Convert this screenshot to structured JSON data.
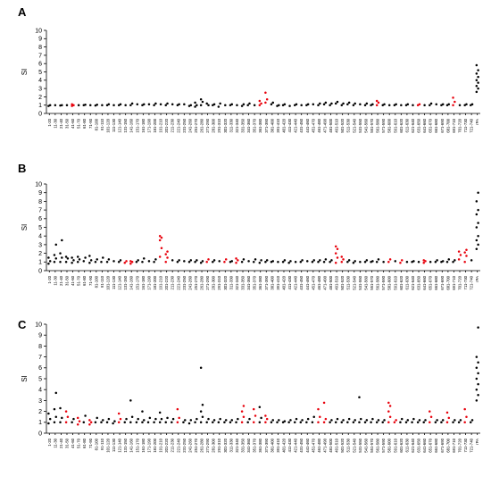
{
  "chart_data": {
    "type": "scatter",
    "panels": [
      "A",
      "B",
      "C"
    ],
    "ylabel": "SI",
    "ylim": [
      0,
      10
    ],
    "yticks": [
      0,
      1,
      2,
      3,
      4,
      5,
      6,
      7,
      8,
      9,
      10
    ],
    "categories": [
      "1-20",
      "11-30",
      "21-40",
      "31-50",
      "41-60",
      "51-70",
      "61-80",
      "71-90",
      "81-100",
      "91-110",
      "101-120",
      "111-130",
      "121-140",
      "131-150",
      "141-160",
      "151-170",
      "161-180",
      "171-190",
      "181-200",
      "191-210",
      "201-220",
      "211-230",
      "221-240",
      "231-250",
      "241-260",
      "251-270",
      "261-280",
      "271-290",
      "281-300",
      "291-310",
      "301-320",
      "311-330",
      "321-340",
      "331-350",
      "341-360",
      "351-370",
      "361-380",
      "371-390",
      "381-400",
      "391-410",
      "401-420",
      "411-430",
      "421-440",
      "431-450",
      "441-460",
      "451-470",
      "461-480",
      "471-490",
      "481-500",
      "491-510",
      "501-520",
      "511-530",
      "521-540",
      "531-550",
      "541-560",
      "551-570",
      "561-580",
      "571-590",
      "581-600",
      "591-610",
      "601-620",
      "611-630",
      "621-640",
      "631-650",
      "641-660",
      "651-670",
      "661-680",
      "671-690",
      "681-700",
      "691-710",
      "701-720",
      "711-730",
      "721-740",
      "rPA"
    ],
    "colors": {
      "normal": "#000000",
      "highlight": "#e8000b"
    },
    "series": [
      {
        "panel": "A",
        "highlight_categories": [
          "41-60",
          "361-380",
          "371-390",
          "561-580",
          "631-650",
          "691-710"
        ],
        "values": {
          "1-20": [
            0.9,
            1.0
          ],
          "11-30": [
            1.0
          ],
          "21-40": [
            0.95,
            1.0
          ],
          "31-50": [
            1.0
          ],
          "41-60": [
            0.9,
            1.0,
            1.1
          ],
          "51-70": [
            1.0
          ],
          "61-80": [
            1.0,
            1.05
          ],
          "71-90": [
            1.0
          ],
          "81-100": [
            0.95,
            1.05
          ],
          "91-110": [
            1.0
          ],
          "101-120": [
            1.0,
            1.1
          ],
          "111-130": [
            1.0
          ],
          "121-140": [
            1.0,
            1.1
          ],
          "131-150": [
            1.0
          ],
          "141-160": [
            1.0,
            1.2
          ],
          "151-170": [
            1.1
          ],
          "161-180": [
            1.0,
            1.1
          ],
          "171-190": [
            1.1
          ],
          "181-200": [
            1.0,
            1.2
          ],
          "191-210": [
            1.1
          ],
          "201-220": [
            1.0,
            1.2
          ],
          "211-230": [
            1.1
          ],
          "221-240": [
            1.0,
            1.1
          ],
          "231-250": [
            1.1
          ],
          "241-260": [
            0.9,
            1.0
          ],
          "251-270": [
            0.8,
            1.0,
            1.3
          ],
          "261-280": [
            1.0,
            1.4,
            1.7
          ],
          "271-290": [
            1.2,
            1.0
          ],
          "281-300": [
            1.0,
            1.1
          ],
          "291-310": [
            0.8,
            1.2
          ],
          "301-320": [
            1.0
          ],
          "311-330": [
            1.0,
            1.1
          ],
          "321-340": [
            1.0
          ],
          "331-350": [
            0.9,
            1.1
          ],
          "341-360": [
            1.0,
            1.2
          ],
          "351-370": [
            1.0
          ],
          "361-380": [
            1.0,
            1.2,
            1.5
          ],
          "371-390": [
            1.3,
            1.7,
            2.5
          ],
          "381-400": [
            1.1,
            1.3
          ],
          "391-410": [
            0.9,
            1.0
          ],
          "401-420": [
            1.0,
            1.1
          ],
          "411-430": [
            0.9
          ],
          "421-440": [
            1.0,
            1.1
          ],
          "431-450": [
            1.0
          ],
          "441-460": [
            1.0,
            1.1
          ],
          "451-470": [
            1.1
          ],
          "461-480": [
            1.0,
            1.2
          ],
          "471-490": [
            1.1,
            1.3
          ],
          "481-500": [
            1.0,
            1.2
          ],
          "491-510": [
            1.2,
            1.4
          ],
          "501-520": [
            1.0,
            1.2
          ],
          "511-530": [
            1.1,
            1.3
          ],
          "521-540": [
            1.0,
            1.2
          ],
          "531-550": [
            1.1
          ],
          "541-560": [
            1.0,
            1.2
          ],
          "551-570": [
            1.0,
            1.1
          ],
          "561-580": [
            1.0,
            1.3,
            1.5
          ],
          "571-590": [
            1.0,
            1.1
          ],
          "581-600": [
            1.0
          ],
          "591-610": [
            1.0,
            1.1
          ],
          "601-620": [
            1.0
          ],
          "611-630": [
            1.0,
            1.1
          ],
          "621-640": [
            1.0
          ],
          "631-650": [
            1.0,
            1.1
          ],
          "641-660": [
            1.0
          ],
          "651-670": [
            1.0,
            1.2
          ],
          "661-680": [
            1.1
          ],
          "671-690": [
            1.0,
            1.1
          ],
          "681-700": [
            1.0,
            1.1
          ],
          "691-710": [
            1.0,
            1.4,
            1.9
          ],
          "701-720": [
            1.0
          ],
          "711-730": [
            1.0,
            1.1
          ],
          "721-740": [
            1.0,
            1.1
          ],
          "rPA": [
            2.6,
            3.0,
            3.3,
            3.7,
            4.0,
            4.4,
            4.8,
            5.2,
            5.8
          ]
        }
      },
      {
        "panel": "B",
        "highlight_categories": [
          "131-150",
          "141-160",
          "191-210",
          "201-220",
          "271-290",
          "301-320",
          "321-340",
          "491-510",
          "501-520",
          "581-600",
          "601-620",
          "641-660",
          "701-720",
          "711-730"
        ],
        "values": {
          "1-20": [
            0.8,
            1.1,
            1.5
          ],
          "11-30": [
            1.0,
            1.4,
            1.8,
            3.0
          ],
          "21-40": [
            1.0,
            1.5,
            2.0,
            3.5
          ],
          "31-50": [
            1.0,
            1.4,
            1.6
          ],
          "41-60": [
            0.9,
            1.2,
            1.5
          ],
          "51-70": [
            1.0,
            1.3,
            1.6
          ],
          "61-80": [
            1.1,
            1.5
          ],
          "71-90": [
            0.9,
            1.2,
            1.7
          ],
          "81-100": [
            1.0,
            1.3
          ],
          "91-110": [
            1.0,
            1.5
          ],
          "101-120": [
            1.0,
            1.3
          ],
          "111-130": [
            1.1
          ],
          "121-140": [
            1.0,
            1.2
          ],
          "131-150": [
            0.9,
            1.1
          ],
          "141-160": [
            0.8,
            1.0,
            1.1
          ],
          "151-170": [
            1.0,
            1.2
          ],
          "161-180": [
            1.0,
            1.4
          ],
          "171-190": [
            1.1
          ],
          "181-200": [
            1.0,
            1.3
          ],
          "191-210": [
            1.6,
            2.6,
            3.5,
            3.8,
            4.0
          ],
          "201-220": [
            1.0,
            1.5,
            1.9,
            2.2
          ],
          "211-230": [
            1.2
          ],
          "221-240": [
            1.0,
            1.2
          ],
          "231-250": [
            1.1
          ],
          "241-260": [
            1.0,
            1.2
          ],
          "251-270": [
            1.0,
            1.2
          ],
          "261-280": [
            0.9,
            1.1
          ],
          "271-290": [
            1.0,
            1.3
          ],
          "281-300": [
            1.0,
            1.2
          ],
          "291-310": [
            1.1
          ],
          "301-320": [
            1.0,
            1.3
          ],
          "311-330": [
            1.0,
            1.1
          ],
          "321-340": [
            0.9,
            1.2,
            1.4
          ],
          "331-350": [
            1.0,
            1.3
          ],
          "341-360": [
            1.1
          ],
          "351-370": [
            1.0,
            1.3
          ],
          "361-380": [
            0.9,
            1.2
          ],
          "371-390": [
            1.0,
            1.2
          ],
          "381-400": [
            1.0,
            1.1
          ],
          "391-410": [
            1.0
          ],
          "401-420": [
            1.0,
            1.2
          ],
          "411-430": [
            0.9,
            1.1
          ],
          "421-440": [
            1.0
          ],
          "431-450": [
            1.0,
            1.2
          ],
          "441-460": [
            1.1
          ],
          "451-470": [
            1.0,
            1.2
          ],
          "461-480": [
            1.0,
            1.2
          ],
          "471-490": [
            1.0,
            1.3
          ],
          "481-500": [
            1.0,
            1.2
          ],
          "491-510": [
            0.9,
            1.5,
            2.0,
            2.5,
            2.8
          ],
          "501-520": [
            1.0,
            1.3,
            1.6
          ],
          "511-530": [
            1.0,
            1.2
          ],
          "521-540": [
            0.9,
            1.1
          ],
          "531-550": [
            1.0
          ],
          "541-560": [
            1.0,
            1.2
          ],
          "551-570": [
            1.0,
            1.1
          ],
          "561-580": [
            1.0,
            1.3
          ],
          "571-590": [
            1.0
          ],
          "581-600": [
            1.0,
            1.3
          ],
          "591-610": [
            1.1
          ],
          "601-620": [
            0.9,
            1.2
          ],
          "611-630": [
            1.0
          ],
          "621-640": [
            1.0,
            1.1
          ],
          "631-650": [
            1.0
          ],
          "641-660": [
            0.9,
            1.1,
            1.2
          ],
          "651-670": [
            1.0
          ],
          "661-680": [
            1.0,
            1.2
          ],
          "671-690": [
            1.0,
            1.1
          ],
          "681-700": [
            1.0,
            1.3
          ],
          "691-710": [
            1.0,
            1.2
          ],
          "701-720": [
            1.3,
            1.8,
            2.2
          ],
          "711-730": [
            1.0,
            1.7,
            2.1,
            2.4
          ],
          "721-740": [
            1.2
          ],
          "rPA": [
            2.5,
            3.0,
            3.5,
            4.0,
            5.0,
            5.5,
            6.5,
            7.0,
            8.0,
            9.0
          ]
        }
      },
      {
        "panel": "C",
        "highlight_categories": [
          "31-50",
          "51-70",
          "71-90",
          "121-140",
          "221-240",
          "331-350",
          "351-370",
          "371-390",
          "461-480",
          "471-490",
          "581-600",
          "591-610",
          "651-670",
          "681-700",
          "711-730"
        ],
        "values": {
          "1-20": [
            0.9,
            1.3,
            1.8
          ],
          "11-30": [
            1.0,
            1.5,
            2.2,
            3.7
          ],
          "21-40": [
            1.0,
            1.4,
            2.3
          ],
          "31-50": [
            1.0,
            1.5,
            2.0
          ],
          "41-60": [
            1.0,
            1.3
          ],
          "51-70": [
            0.8,
            1.1,
            1.4
          ],
          "61-80": [
            1.0,
            1.6
          ],
          "71-90": [
            0.8,
            1.0,
            1.2
          ],
          "81-100": [
            1.0,
            1.4
          ],
          "91-110": [
            1.0,
            1.2
          ],
          "101-120": [
            1.0,
            1.3
          ],
          "111-130": [
            0.9,
            1.1
          ],
          "121-140": [
            1.0,
            1.3,
            1.8
          ],
          "131-150": [
            1.0,
            1.3
          ],
          "141-160": [
            1.0,
            1.5,
            3.0
          ],
          "151-170": [
            1.0,
            1.3
          ],
          "161-180": [
            1.0,
            1.2,
            2.0
          ],
          "171-190": [
            1.0,
            1.4
          ],
          "181-200": [
            1.0,
            1.3
          ],
          "191-210": [
            1.0,
            1.3,
            1.9
          ],
          "201-220": [
            1.0,
            1.4
          ],
          "211-230": [
            1.0,
            1.3
          ],
          "221-240": [
            1.0,
            1.4,
            2.2
          ],
          "231-250": [
            1.0,
            1.2
          ],
          "241-260": [
            0.9,
            1.2
          ],
          "251-270": [
            1.0,
            1.3
          ],
          "261-280": [
            1.0,
            1.5,
            2.0,
            2.6,
            6.0
          ],
          "271-290": [
            1.0,
            1.3
          ],
          "281-300": [
            1.0,
            1.2
          ],
          "291-310": [
            1.0,
            1.3
          ],
          "301-320": [
            1.0,
            1.2
          ],
          "311-330": [
            1.0,
            1.2
          ],
          "321-340": [
            1.0,
            1.3
          ],
          "331-350": [
            1.0,
            1.5,
            2.0,
            2.5
          ],
          "341-360": [
            1.0,
            1.3
          ],
          "351-370": [
            1.0,
            1.6,
            2.2
          ],
          "361-380": [
            1.0,
            1.4,
            2.4
          ],
          "371-390": [
            1.0,
            1.3,
            1.6
          ],
          "381-400": [
            1.0,
            1.2
          ],
          "391-410": [
            1.0,
            1.2
          ],
          "401-420": [
            1.0,
            1.1
          ],
          "411-430": [
            1.0,
            1.2
          ],
          "421-440": [
            1.0,
            1.3
          ],
          "431-450": [
            1.0,
            1.2
          ],
          "441-460": [
            1.0,
            1.3
          ],
          "451-470": [
            1.0,
            1.5
          ],
          "461-480": [
            1.0,
            1.5,
            2.2
          ],
          "471-490": [
            1.0,
            1.3,
            2.8
          ],
          "481-500": [
            1.0,
            1.2
          ],
          "491-510": [
            1.0,
            1.3
          ],
          "501-520": [
            1.0,
            1.2
          ],
          "511-530": [
            1.0,
            1.3
          ],
          "521-540": [
            1.0,
            1.2
          ],
          "531-550": [
            1.0,
            1.3,
            3.3
          ],
          "541-560": [
            1.0,
            1.2
          ],
          "551-570": [
            1.0,
            1.3
          ],
          "561-580": [
            1.0,
            1.2
          ],
          "571-590": [
            1.0,
            1.2
          ],
          "581-600": [
            1.0,
            1.5,
            2.0,
            2.5,
            2.8
          ],
          "591-610": [
            1.0,
            1.2
          ],
          "601-620": [
            1.0,
            1.3
          ],
          "611-630": [
            1.0,
            1.2
          ],
          "621-640": [
            1.0,
            1.3
          ],
          "631-650": [
            1.0,
            1.2
          ],
          "641-660": [
            1.0,
            1.2
          ],
          "651-670": [
            1.0,
            1.5,
            2.0
          ],
          "661-680": [
            1.0,
            1.2
          ],
          "671-690": [
            1.0,
            1.2
          ],
          "681-700": [
            1.0,
            1.4,
            1.9
          ],
          "691-710": [
            1.0,
            1.2
          ],
          "701-720": [
            1.0,
            1.2
          ],
          "711-730": [
            1.0,
            1.5,
            2.2
          ],
          "721-740": [
            1.0,
            1.2
          ],
          "rPA": [
            3.0,
            3.5,
            4.0,
            4.5,
            5.0,
            5.5,
            6.0,
            6.5,
            7.0,
            9.7
          ]
        }
      }
    ]
  }
}
